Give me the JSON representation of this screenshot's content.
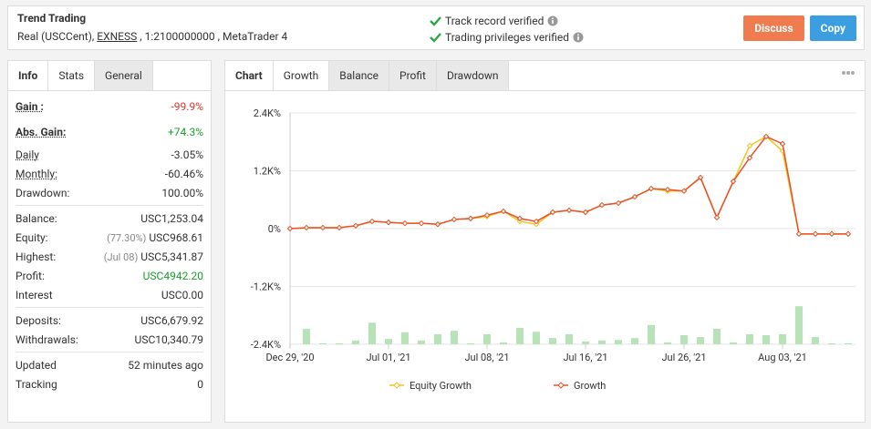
{
  "header": {
    "title": "Trend Trading",
    "account": [
      "Real (USCCent),",
      "EXNESS",
      ", 1:2100000000 , MetaTrader 4"
    ],
    "verifications": [
      "Track record verified",
      "Trading privileges verified"
    ],
    "buttons": [
      {
        "label": "Discuss",
        "color": "#f07b4f"
      },
      {
        "label": "Copy",
        "color": "#3a9ee0"
      }
    ]
  },
  "left_panel": {
    "tabs": [
      "Info",
      "Stats",
      "General"
    ],
    "groups": [
      [
        {
          "label": "Gain :",
          "value": "-99.9%",
          "color": "#e0322c",
          "underline": true,
          "tall": true
        },
        {
          "label": "Abs. Gain:",
          "value": "+74.3%",
          "color": "#19a02c",
          "underline": true,
          "tall": true
        },
        {
          "label": "Daily",
          "value": "-3.05%",
          "underline": true
        },
        {
          "label": "Monthly:",
          "value": "-60.46%",
          "underline": true
        },
        {
          "label": "Drawdown:",
          "value": "100.00%"
        }
      ],
      [
        {
          "label": "Balance:",
          "value": "USC1,253.04"
        },
        {
          "label": "Equity:",
          "note": "(77.30%)",
          "value": "USC968.61"
        },
        {
          "label": "Highest:",
          "note": "(Jul 08)",
          "value": "USC5,341.87"
        },
        {
          "label": "Profit:",
          "value": "USC4942.20",
          "color": "#19a02c"
        },
        {
          "label": "Interest",
          "value": "USC0.00"
        }
      ],
      [
        {
          "label": "Deposits:",
          "value": "USC6,679.92"
        },
        {
          "label": "Withdrawals:",
          "value": "USC10,340.79"
        }
      ],
      [
        {
          "label": "Updated",
          "value": "52 minutes ago"
        },
        {
          "label": "Tracking",
          "value": "0"
        }
      ]
    ]
  },
  "right_panel": {
    "tabs": [
      "Chart",
      "Growth",
      "Balance",
      "Profit",
      "Drawdown"
    ],
    "active_tab": 1
  },
  "chart_data": {
    "type": "line",
    "categories": [
      "Dec 29, '20",
      null,
      null,
      null,
      null,
      null,
      "Jul 01, '21",
      null,
      null,
      null,
      null,
      null,
      "Jul 08, '21",
      null,
      null,
      null,
      null,
      null,
      "Jul 16, '21",
      null,
      null,
      null,
      null,
      null,
      "Jul 26, '21",
      null,
      null,
      null,
      null,
      null,
      "Aug 03, '21",
      null,
      null,
      null,
      null
    ],
    "series": [
      {
        "name": "Equity Growth",
        "color": "#f5c31c",
        "values": [
          0,
          20,
          20,
          20,
          60,
          150,
          130,
          110,
          110,
          90,
          190,
          210,
          250,
          360,
          150,
          90,
          340,
          380,
          340,
          490,
          530,
          660,
          830,
          780,
          780,
          1060,
          230,
          980,
          1720,
          1910,
          1610,
          -110,
          -110,
          -110,
          -110
        ]
      },
      {
        "name": "Growth",
        "color": "#e8502a",
        "values": [
          0,
          20,
          20,
          20,
          60,
          150,
          130,
          110,
          110,
          90,
          190,
          210,
          280,
          360,
          210,
          150,
          340,
          380,
          340,
          490,
          530,
          660,
          830,
          810,
          780,
          1060,
          230,
          980,
          1470,
          1910,
          1760,
          -110,
          -110,
          -110,
          -110
        ]
      }
    ],
    "bars": {
      "color": "#b8e2b8",
      "values": [
        null,
        -2080,
        -2380,
        -2380,
        -2320,
        -1950,
        -2290,
        -2150,
        -2320,
        -2190,
        -2120,
        -2380,
        -2190,
        -2360,
        -2060,
        -2140,
        -2270,
        -2190,
        -2340,
        -2320,
        -2310,
        -2270,
        -2000,
        -2360,
        -2210,
        -2250,
        -2080,
        -2360,
        -2190,
        -2210,
        -2190,
        -1610,
        -2250,
        -2380,
        -2380
      ]
    },
    "ylim": [
      -2400,
      2400
    ],
    "yticks": [
      {
        "value": 2400,
        "label": "2.4K%"
      },
      {
        "value": 1200,
        "label": "1.2K%"
      },
      {
        "value": 0,
        "label": "0%"
      },
      {
        "value": -1200,
        "label": "-1.2K%"
      },
      {
        "value": -2400,
        "label": "-2.4K%"
      }
    ],
    "grid": true
  }
}
